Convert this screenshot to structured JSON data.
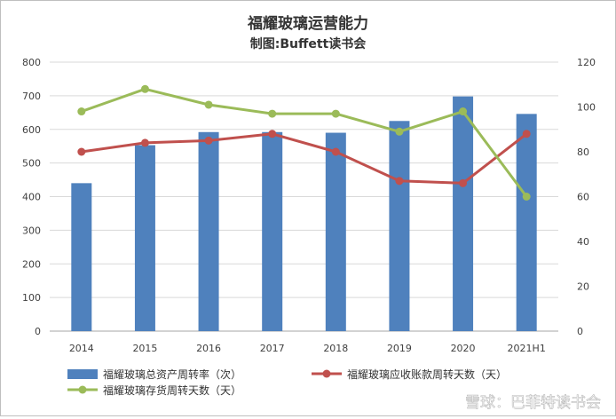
{
  "chart_data": {
    "type": "bar+line",
    "title": "福耀玻璃运营能力",
    "subtitle": "制图:Buffett读书会",
    "categories": [
      "2014",
      "2015",
      "2016",
      "2017",
      "2018",
      "2019",
      "2020",
      "2021H1"
    ],
    "left_axis": {
      "ylim": [
        0,
        800
      ],
      "ticks": [
        "0",
        "100",
        "200",
        "300",
        "400",
        "500",
        "600",
        "700",
        "800"
      ]
    },
    "right_axis": {
      "ylim": [
        0,
        120
      ],
      "ticks": [
        "0",
        "20",
        "40",
        "60",
        "80",
        "100",
        "120"
      ]
    },
    "series": [
      {
        "name": "福耀玻璃总资产周转率（次）",
        "type": "bar",
        "axis": "left",
        "color": "#4f81bd",
        "values": [
          440,
          553,
          592,
          592,
          590,
          625,
          698,
          646
        ]
      },
      {
        "name": "福耀玻璃应收账款周转天数（天）",
        "type": "line",
        "axis": "right",
        "color": "#c0504d",
        "values": [
          80,
          84,
          85,
          88,
          80,
          67,
          66,
          88
        ]
      },
      {
        "name": "福耀玻璃存货周转天数（天）",
        "type": "line",
        "axis": "right",
        "color": "#9bbb59",
        "values": [
          98,
          108,
          101,
          97,
          97,
          89,
          98,
          60
        ]
      }
    ],
    "grid": true,
    "legend_position": "bottom"
  },
  "watermark": "雪球：巴菲特读书会"
}
